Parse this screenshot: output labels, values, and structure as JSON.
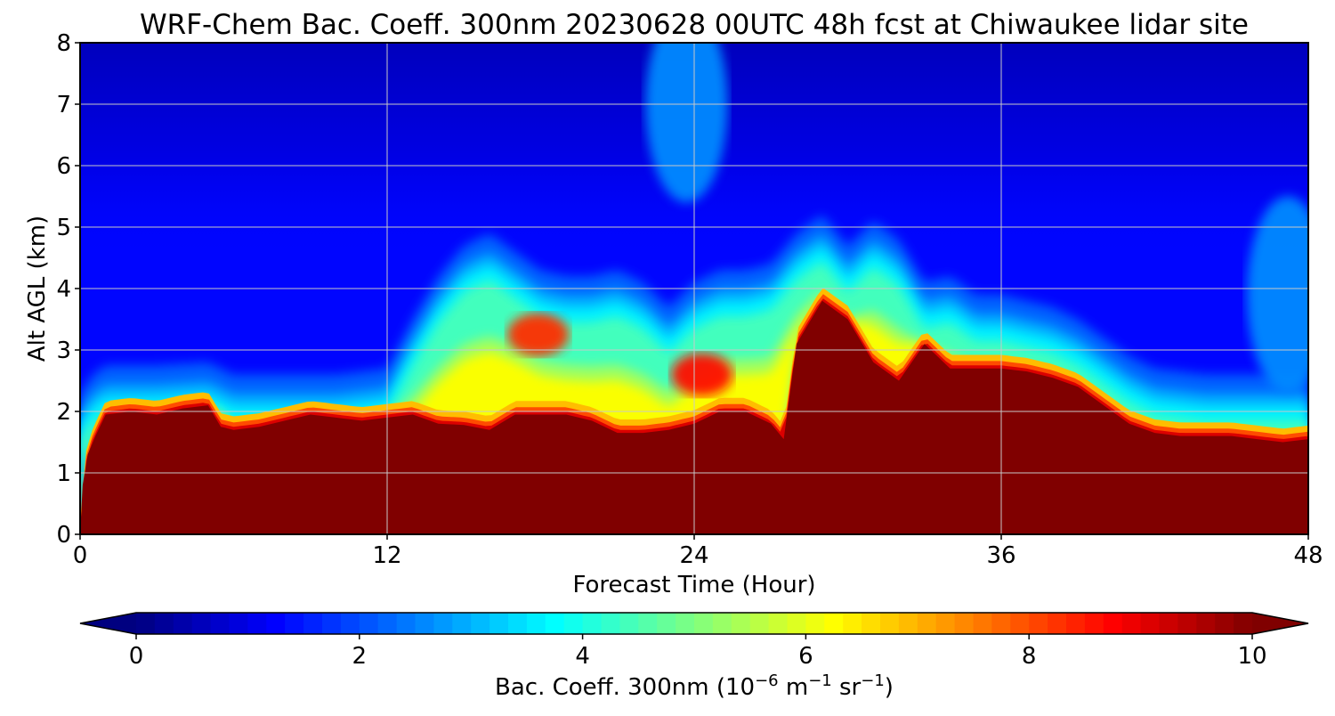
{
  "chart_data": {
    "type": "heatmap",
    "title": "WRF-Chem Bac. Coeff. 300nm  20230628 00UTC 48h fcst at Chiwaukee lidar site",
    "xlabel": "Forecast Time (Hour)",
    "ylabel": "Alt AGL (km)",
    "xlim": [
      0,
      48
    ],
    "ylim": [
      0,
      8
    ],
    "x_ticks": [
      0,
      12,
      24,
      36,
      48
    ],
    "y_ticks": [
      0,
      1,
      2,
      3,
      4,
      5,
      6,
      7,
      8
    ],
    "grid": true,
    "colormap": "jet",
    "colorbar": {
      "label_main": "Bac. Coeff. 300nm  (10",
      "label_exp1": "−6",
      "label_mid": " m",
      "label_exp2": "−1",
      "label_mid2": " sr",
      "label_exp3": "−1",
      "label_end": ")",
      "range": [
        0,
        10
      ],
      "ticks": [
        0,
        2,
        4,
        6,
        8,
        10
      ],
      "extend": "both",
      "orientation": "horizontal"
    },
    "saturated_layer_top_km": {
      "hour": [
        0,
        0.1,
        0.3,
        0.6,
        1,
        2,
        3,
        4,
        5,
        5.5,
        6,
        7,
        8,
        9,
        10,
        11,
        12,
        13,
        14,
        15,
        16,
        17,
        18,
        19,
        20,
        21,
        22,
        23,
        24,
        25,
        26,
        27,
        27.5,
        28,
        29,
        30,
        31,
        32,
        33,
        34,
        35,
        36,
        37,
        38,
        39,
        40,
        41,
        42,
        43,
        44,
        45,
        46,
        47,
        48
      ],
      "alt_km": [
        0,
        0.8,
        1.3,
        1.6,
        1.95,
        2.0,
        1.95,
        2.05,
        2.1,
        1.75,
        1.7,
        1.75,
        1.85,
        1.95,
        1.9,
        1.85,
        1.9,
        1.95,
        1.8,
        1.78,
        1.7,
        1.95,
        1.95,
        1.95,
        1.85,
        1.65,
        1.65,
        1.7,
        1.8,
        2.0,
        2.0,
        1.8,
        1.55,
        3.1,
        3.8,
        3.5,
        2.8,
        2.5,
        3.1,
        2.7,
        2.7,
        2.7,
        2.65,
        2.55,
        2.4,
        2.1,
        1.8,
        1.65,
        1.6,
        1.6,
        1.6,
        1.55,
        1.5,
        1.55
      ]
    },
    "aerosol_plume_top_km": {
      "hour": [
        0,
        0.5,
        1,
        3,
        5,
        6,
        8,
        10,
        12,
        13,
        14,
        15,
        16,
        17,
        18,
        19,
        20,
        21,
        22,
        23,
        24,
        25,
        26,
        27,
        28,
        29,
        30,
        31,
        32,
        33,
        34,
        35,
        36,
        37,
        38,
        39,
        40,
        41,
        42,
        44,
        46,
        47,
        48
      ],
      "alt_km": [
        1.8,
        2.1,
        2.25,
        2.25,
        2.3,
        2.1,
        2.1,
        2.1,
        2.2,
        3.0,
        3.7,
        4.2,
        4.4,
        4.1,
        3.8,
        3.7,
        3.7,
        3.8,
        3.6,
        3.2,
        3.6,
        3.8,
        3.8,
        3.9,
        4.4,
        4.7,
        4.2,
        4.6,
        4.3,
        3.6,
        3.7,
        3.4,
        3.4,
        3.3,
        3.2,
        3.0,
        2.7,
        2.4,
        2.2,
        2.1,
        2.1,
        2.1,
        2.1
      ]
    },
    "elevated_features": [
      {
        "hour": 17.9,
        "alt_km": 3.25,
        "value": 8.3,
        "label": "local maximum"
      },
      {
        "hour": 24.3,
        "alt_km": 2.6,
        "value": 8.6,
        "label": "local maximum"
      },
      {
        "hour": 23.7,
        "alt_km": 7.0,
        "value": 2.6,
        "label": "upper plume"
      },
      {
        "hour": 47.2,
        "alt_km": 3.9,
        "value": 2.6,
        "label": "upper plume"
      }
    ],
    "background_value": 0.6,
    "free_troposphere_value": 1.3
  }
}
